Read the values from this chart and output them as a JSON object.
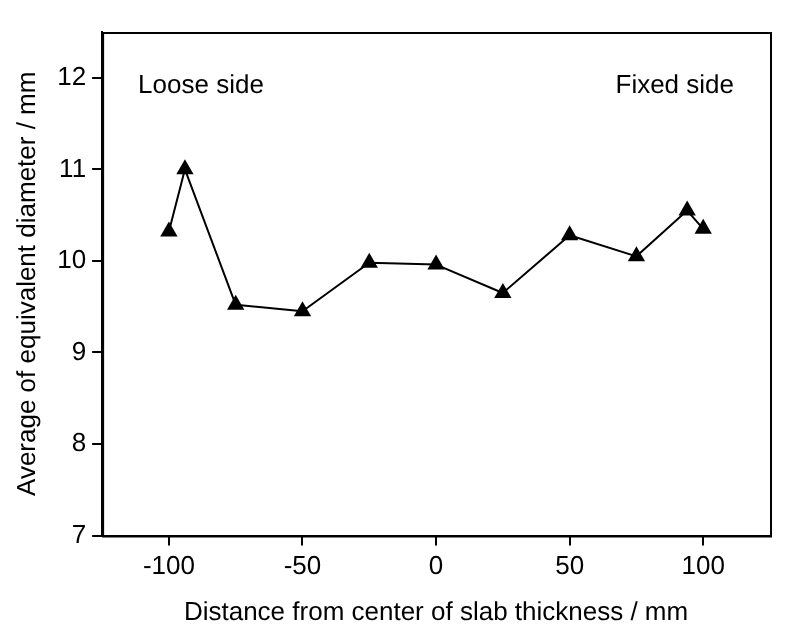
{
  "chart_data": {
    "type": "line",
    "xlabel": "Distance from center of slab thickness / mm",
    "ylabel": "Average of equivalent diameter / mm",
    "x": [
      -100,
      -94,
      -75,
      -50,
      -25,
      0,
      25,
      50,
      75,
      94,
      100
    ],
    "series": [
      {
        "color": "#000000",
        "values": [
          10.32,
          11.0,
          9.52,
          9.45,
          9.98,
          9.96,
          9.65,
          10.28,
          10.05,
          10.55,
          10.35
        ]
      }
    ],
    "xlim": [
      -125,
      125
    ],
    "xticks": [
      -100,
      -50,
      0,
      50,
      100
    ],
    "ylim": [
      7,
      12.5
    ],
    "yticks": [
      7,
      8,
      9,
      10,
      11,
      12
    ],
    "annotations": [
      "Loose side",
      "Fixed side"
    ],
    "marker": "triangle",
    "line_style": "solid",
    "grid": false,
    "legend": false
  }
}
